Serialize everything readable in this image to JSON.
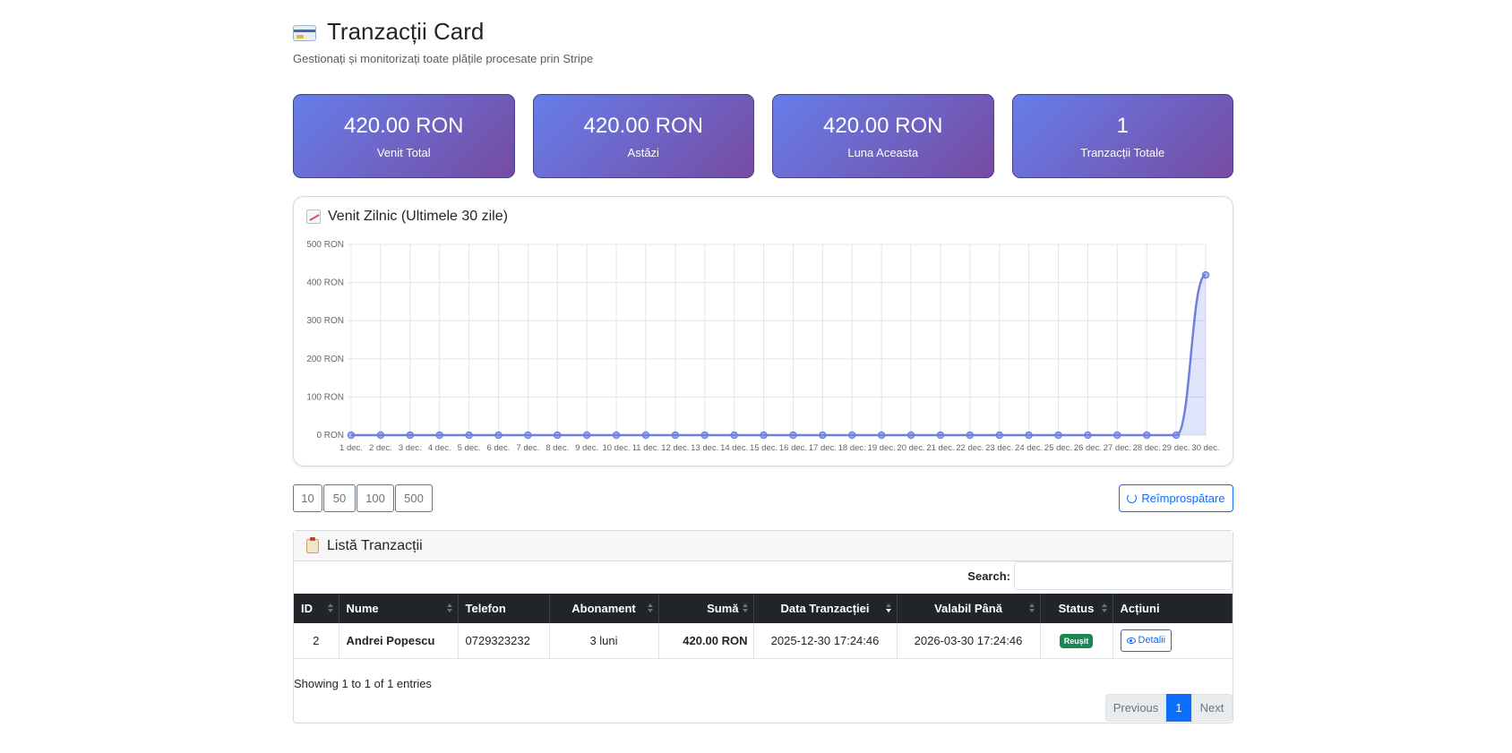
{
  "header": {
    "title": "Tranzacții Card",
    "subtitle": "Gestionați și monitorizați toate plățile procesate prin Stripe",
    "icon": "credit-card-icon"
  },
  "stats": [
    {
      "value": "420.00 RON",
      "label": "Venit Total"
    },
    {
      "value": "420.00 RON",
      "label": "Astăzi"
    },
    {
      "value": "420.00 RON",
      "label": "Luna Aceasta"
    },
    {
      "value": "1",
      "label": "Tranzacții Totale"
    }
  ],
  "chart_card": {
    "title": "Venit Zilnic (Ultimele 30 zile)",
    "icon": "chart-increasing-icon"
  },
  "chart_data": {
    "type": "line",
    "categories": [
      "1 dec.",
      "2 dec.",
      "3 dec.",
      "4 dec.",
      "5 dec.",
      "6 dec.",
      "7 dec.",
      "8 dec.",
      "9 dec.",
      "10 dec.",
      "11 dec.",
      "12 dec.",
      "13 dec.",
      "14 dec.",
      "15 dec.",
      "16 dec.",
      "17 dec.",
      "18 dec.",
      "19 dec.",
      "20 dec.",
      "21 dec.",
      "22 dec.",
      "23 dec.",
      "24 dec.",
      "25 dec.",
      "26 dec.",
      "27 dec.",
      "28 dec.",
      "29 dec.",
      "30 dec."
    ],
    "values": [
      0,
      0,
      0,
      0,
      0,
      0,
      0,
      0,
      0,
      0,
      0,
      0,
      0,
      0,
      0,
      0,
      0,
      0,
      0,
      0,
      0,
      0,
      0,
      0,
      0,
      0,
      0,
      0,
      0,
      420
    ],
    "yticks": [
      "0 RON",
      "100 RON",
      "200 RON",
      "300 RON",
      "400 RON",
      "500 RON"
    ],
    "ylim": [
      0,
      500
    ],
    "fill": true,
    "grid": true,
    "color": "#6f7fe0"
  },
  "controls": {
    "lengths": [
      "10",
      "50",
      "100",
      "500"
    ],
    "refresh_label": "Reîmprospătare"
  },
  "list": {
    "title": "Listă Tranzacții",
    "icon": "clipboard-icon",
    "search_label": "Search:",
    "search_value": "",
    "columns": [
      "ID",
      "Nume",
      "Telefon",
      "Abonament",
      "Sumă",
      "Data Tranzacției",
      "Valabil Până",
      "Status",
      "Acțiuni"
    ],
    "rows": [
      {
        "id": "2",
        "name": "Andrei Popescu",
        "phone": "0729323232",
        "plan": "3 luni",
        "amount": "420.00 RON",
        "date": "2025-12-30 17:24:46",
        "valid_until": "2026-03-30 17:24:46",
        "status": "Reușit",
        "action": "Detalii"
      }
    ],
    "info": "Showing 1 to 1 of 1 entries",
    "pager": {
      "previous": "Previous",
      "current": "1",
      "next": "Next"
    }
  },
  "colors": {
    "gradient_start": "#667eea",
    "gradient_end": "#764ba2",
    "primary": "#0d6efd",
    "success": "#198754",
    "table_header": "#212529"
  }
}
